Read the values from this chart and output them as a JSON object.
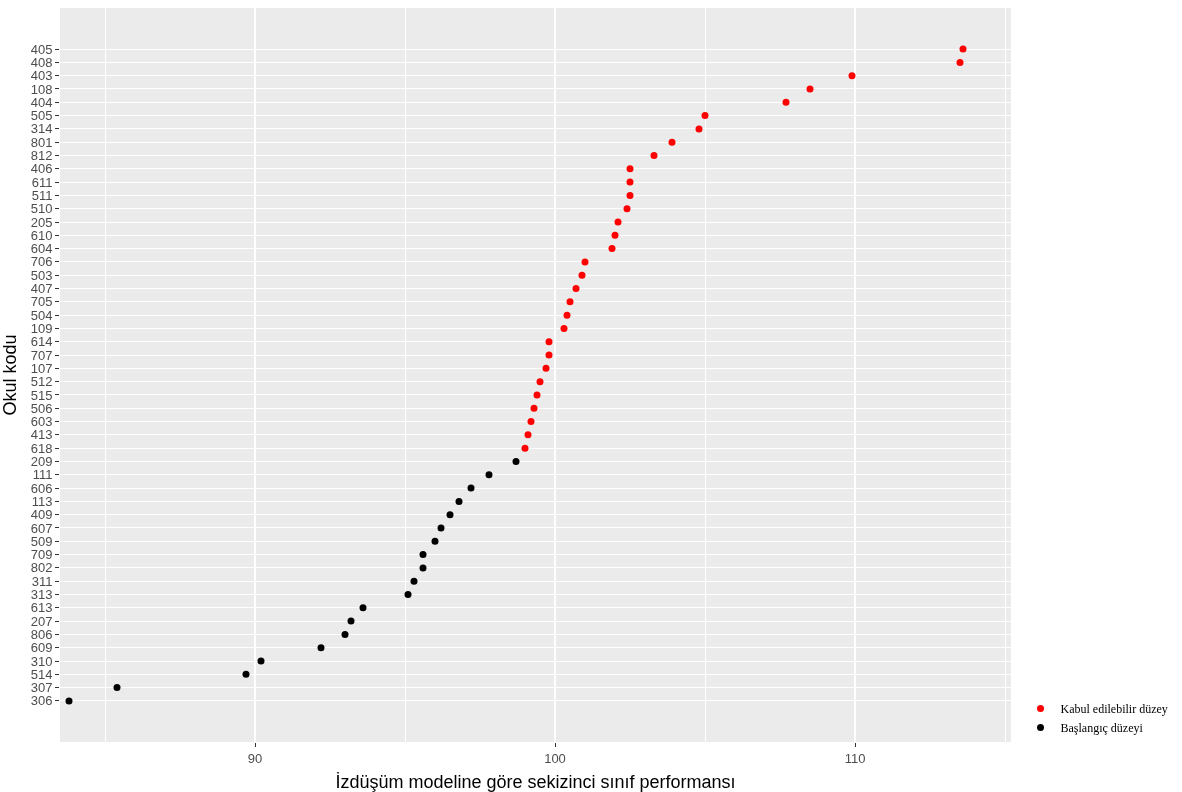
{
  "chart_data": {
    "type": "scatter",
    "orientation": "horizontal",
    "xlabel": "İzdüşüm modeline göre sekizinci sınıf performansı",
    "ylabel": "Okul kodu",
    "categories": [
      "405",
      "408",
      "403",
      "108",
      "404",
      "505",
      "314",
      "801",
      "812",
      "406",
      "611",
      "511",
      "510",
      "205",
      "610",
      "604",
      "706",
      "503",
      "407",
      "705",
      "504",
      "109",
      "614",
      "707",
      "107",
      "512",
      "515",
      "506",
      "603",
      "413",
      "618",
      "209",
      "111",
      "606",
      "113",
      "409",
      "607",
      "509",
      "709",
      "802",
      "311",
      "313",
      "613",
      "207",
      "806",
      "609",
      "310",
      "514",
      "307",
      "306"
    ],
    "series": [
      {
        "name": "Kabul edilebilir düzey",
        "color": "#ff0000",
        "values": [
          113.6,
          113.5,
          109.9,
          108.5,
          107.7,
          105.0,
          104.8,
          103.9,
          103.3,
          102.5,
          102.5,
          102.5,
          102.4,
          102.1,
          102.0,
          101.9,
          101.0,
          100.9,
          100.7,
          100.5,
          100.4,
          100.3,
          99.8,
          99.8,
          99.7,
          99.5,
          99.4,
          99.3,
          99.2,
          99.1,
          99.0,
          null,
          null,
          null,
          null,
          null,
          null,
          null,
          null,
          null,
          null,
          null,
          null,
          null,
          null,
          null,
          null,
          null,
          null,
          null
        ]
      },
      {
        "name": "Başlangıç düzeyi",
        "color": "#000000",
        "values": [
          null,
          null,
          null,
          null,
          null,
          null,
          null,
          null,
          null,
          null,
          null,
          null,
          null,
          null,
          null,
          null,
          null,
          null,
          null,
          null,
          null,
          null,
          null,
          null,
          null,
          null,
          null,
          null,
          null,
          null,
          null,
          98.7,
          97.8,
          97.2,
          96.8,
          96.5,
          96.2,
          96.0,
          95.6,
          95.6,
          95.3,
          95.1,
          93.6,
          93.2,
          93.0,
          92.2,
          90.2,
          89.7,
          85.4,
          83.8
        ]
      }
    ],
    "xlim": [
      83.5,
      115.2
    ],
    "xticks": [
      90,
      100,
      110
    ],
    "grid": true,
    "legend": "bottom right",
    "marker": "circle"
  }
}
